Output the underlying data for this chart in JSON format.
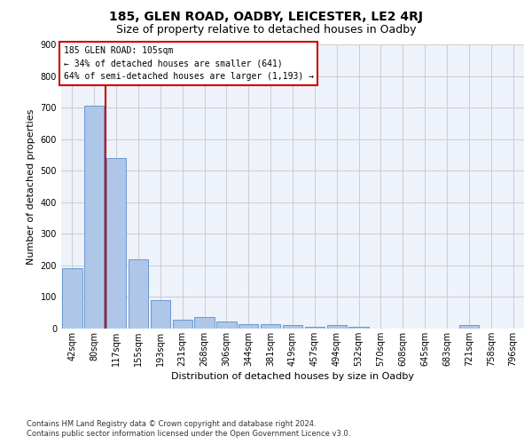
{
  "title1": "185, GLEN ROAD, OADBY, LEICESTER, LE2 4RJ",
  "title2": "Size of property relative to detached houses in Oadby",
  "xlabel": "Distribution of detached houses by size in Oadby",
  "ylabel": "Number of detached properties",
  "categories": [
    "42sqm",
    "80sqm",
    "117sqm",
    "155sqm",
    "193sqm",
    "231sqm",
    "268sqm",
    "306sqm",
    "344sqm",
    "381sqm",
    "419sqm",
    "457sqm",
    "494sqm",
    "532sqm",
    "570sqm",
    "608sqm",
    "645sqm",
    "683sqm",
    "721sqm",
    "758sqm",
    "796sqm"
  ],
  "values": [
    190,
    705,
    540,
    220,
    90,
    27,
    37,
    23,
    15,
    13,
    12,
    7,
    10,
    7,
    0,
    0,
    0,
    0,
    10,
    0,
    0
  ],
  "bar_color": "#aec6e8",
  "bar_edge_color": "#5b8fc9",
  "grid_color": "#cccccc",
  "background_color": "#eef2fa",
  "annotation_box_color": "#cc0000",
  "annotation_text": "185 GLEN ROAD: 105sqm\n← 34% of detached houses are smaller (641)\n64% of semi-detached houses are larger (1,193) →",
  "vline_x": 1.5,
  "vline_color": "#cc0000",
  "ylim": [
    0,
    900
  ],
  "yticks": [
    0,
    100,
    200,
    300,
    400,
    500,
    600,
    700,
    800,
    900
  ],
  "footnote1": "Contains HM Land Registry data © Crown copyright and database right 2024.",
  "footnote2": "Contains public sector information licensed under the Open Government Licence v3.0.",
  "title1_fontsize": 10,
  "title2_fontsize": 9,
  "axis_label_fontsize": 8,
  "tick_fontsize": 7,
  "annotation_fontsize": 7,
  "footnote_fontsize": 6
}
